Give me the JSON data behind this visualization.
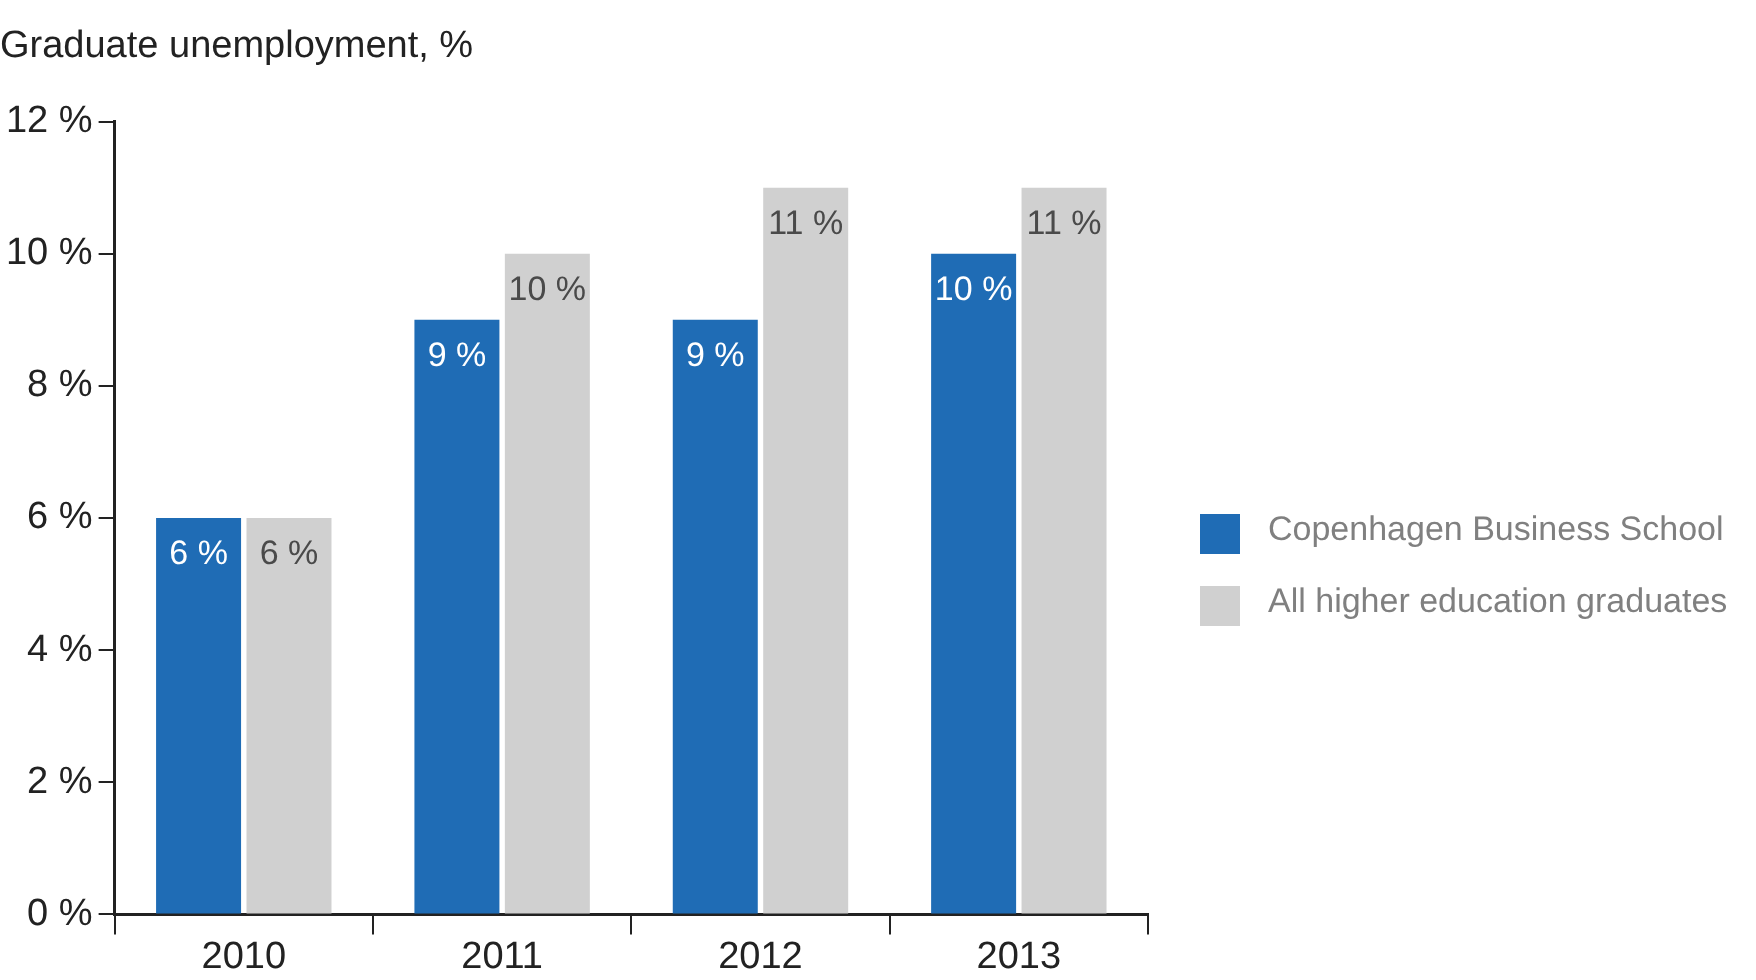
{
  "chart_data": {
    "type": "bar",
    "title": "Graduate unemployment, %",
    "categories": [
      "2010",
      "2011",
      "2012",
      "2013"
    ],
    "series": [
      {
        "name": "Copenhagen Business School",
        "color": "#1f6cb5",
        "values": [
          6,
          9,
          9,
          10
        ],
        "value_labels": [
          "6 %",
          "9 %",
          "9 %",
          "10 %"
        ]
      },
      {
        "name": "All higher education graduates",
        "color": "#d0d0d0",
        "values": [
          6,
          10,
          11,
          11
        ],
        "value_labels": [
          "6 %",
          "10 %",
          "11 %",
          "11 %"
        ]
      }
    ],
    "ylim": [
      0,
      12
    ],
    "yticks": [
      {
        "value": 0,
        "label": "0 %"
      },
      {
        "value": 2,
        "label": "2 %"
      },
      {
        "value": 4,
        "label": "4 %"
      },
      {
        "value": 6,
        "label": "6 %"
      },
      {
        "value": 8,
        "label": "8 %"
      },
      {
        "value": 10,
        "label": "10 %"
      },
      {
        "value": 12,
        "label": "12 %"
      }
    ],
    "grid": false,
    "legend": "right"
  }
}
